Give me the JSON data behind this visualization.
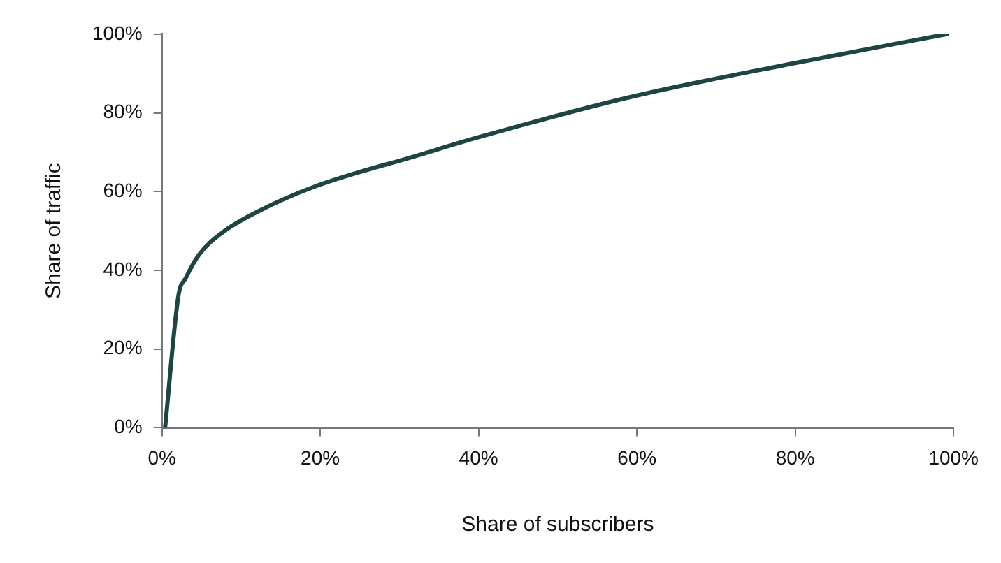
{
  "chart_data": {
    "type": "line",
    "xlabel": "Share of subscribers",
    "ylabel": "Share of traffic",
    "x": [
      0.4,
      2.1,
      3,
      4.7,
      7.7,
      11.7,
      19.2,
      32.5,
      40,
      59.8,
      80.1,
      99.2
    ],
    "series": [
      {
        "color": "#1e4444",
        "values": [
          0,
          33.7,
          38,
          44,
          49.7,
          54.5,
          61.2,
          69.3,
          73.8,
          84.3,
          92.7,
          100
        ]
      }
    ],
    "xlim": [
      0,
      100
    ],
    "ylim": [
      0,
      100
    ],
    "xticks": [
      {
        "value": 0,
        "label": "0%"
      },
      {
        "value": 20,
        "label": "20%"
      },
      {
        "value": 40,
        "label": "40%"
      },
      {
        "value": 60,
        "label": "60%"
      },
      {
        "value": 80,
        "label": "80%"
      },
      {
        "value": 100,
        "label": "100%"
      }
    ],
    "yticks": [
      {
        "value": 0,
        "label": "0%"
      },
      {
        "value": 20,
        "label": "20%"
      },
      {
        "value": 40,
        "label": "40%"
      },
      {
        "value": 60,
        "label": "60%"
      },
      {
        "value": 80,
        "label": "80%"
      },
      {
        "value": 100,
        "label": "100%"
      }
    ],
    "grid": false,
    "legend": false,
    "marker": "none",
    "line_style": "solid"
  }
}
